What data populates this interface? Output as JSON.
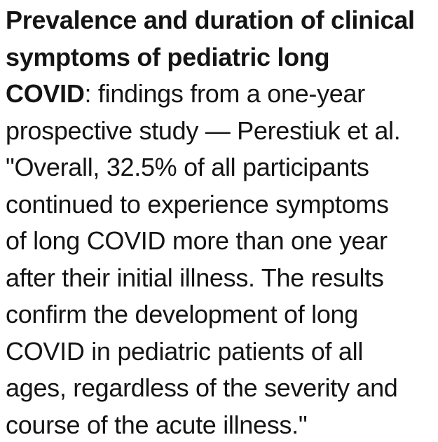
{
  "page": {
    "background_color": "#ffffff",
    "text_color": "#141414"
  },
  "article": {
    "title_bold_text": "Prevalence and duration of clinical symptoms of pediatric long COVID",
    "key_statistic": "32.5%",
    "citation": "Perestiuk et al.",
    "lines": [
      {
        "segments": [
          {
            "text": "Prevalence and duration of clinical",
            "bold": true
          }
        ]
      },
      {
        "segments": [
          {
            "text": "symptoms of pediatric long",
            "bold": true
          }
        ]
      },
      {
        "segments": [
          {
            "text": "COVID",
            "bold": true
          },
          {
            "text": ": findings from a one-year",
            "bold": false
          }
        ]
      },
      {
        "segments": [
          {
            "text": "prospective study — Perestiuk et al.",
            "bold": false
          }
        ]
      },
      {
        "segments": [
          {
            "text": "\"Overall, 32.5% of all participants",
            "bold": false
          }
        ]
      },
      {
        "segments": [
          {
            "text": "continued to experience symptoms",
            "bold": false
          }
        ]
      },
      {
        "segments": [
          {
            "text": "of long COVID more than one year",
            "bold": false
          }
        ]
      },
      {
        "segments": [
          {
            "text": "after their initial illness. The results",
            "bold": false
          }
        ]
      },
      {
        "segments": [
          {
            "text": "confirm the development of long",
            "bold": false
          }
        ]
      },
      {
        "segments": [
          {
            "text": "COVID in pediatric patients of all",
            "bold": false
          }
        ]
      },
      {
        "segments": [
          {
            "text": "ages, regardless of the severity and",
            "bold": false
          }
        ]
      },
      {
        "segments": [
          {
            "text": "course of the acute illness.\"",
            "bold": false
          }
        ]
      }
    ]
  }
}
